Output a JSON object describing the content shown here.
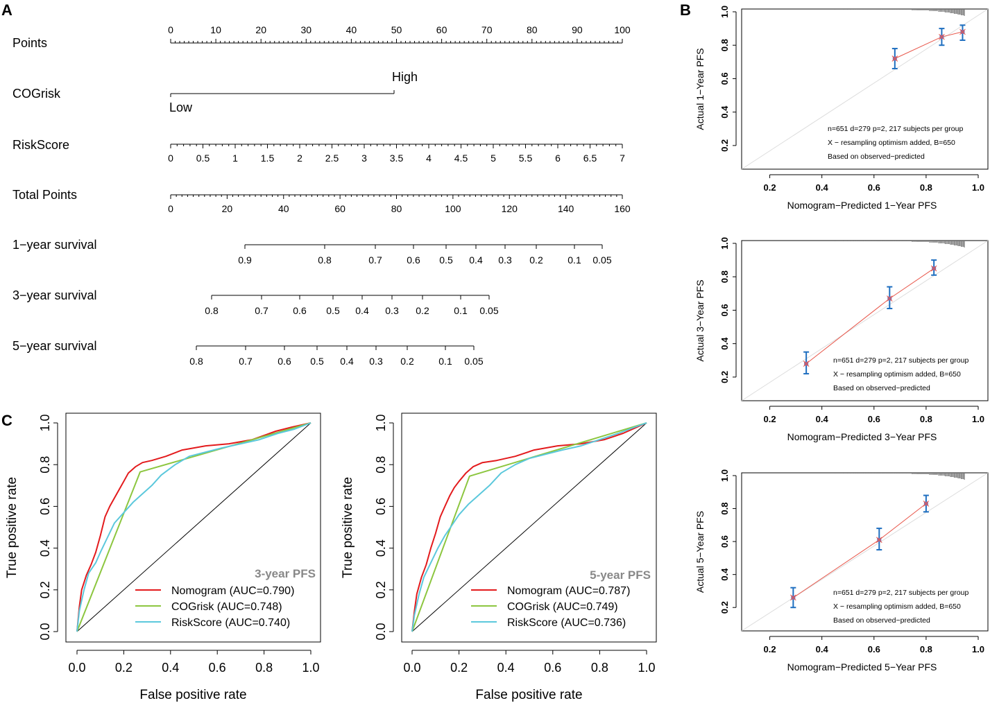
{
  "panels": {
    "a": "A",
    "b": "B",
    "c": "C"
  },
  "colors": {
    "nomogram": "#e31a1c",
    "cogrisk": "#8cc63f",
    "riskscore": "#5bc8dc",
    "calib_line": "#e8564a",
    "calib_err": "#1f6fc0",
    "calib_point": "#8a6da6",
    "ideal": "#dcdcdc"
  },
  "nomogram": {
    "rows": [
      {
        "label": "Points",
        "type": "points",
        "ticks": [
          "0",
          "10",
          "20",
          "30",
          "40",
          "50",
          "60",
          "70",
          "80",
          "90",
          "100"
        ]
      },
      {
        "label": "COGrisk",
        "type": "categorical",
        "low": "Low",
        "high": "High"
      },
      {
        "label": "RiskScore",
        "type": "risk",
        "ticks": [
          "0",
          "0.5",
          "1",
          "1.5",
          "2",
          "2.5",
          "3",
          "3.5",
          "4",
          "4.5",
          "5",
          "5.5",
          "6",
          "6.5",
          "7"
        ]
      },
      {
        "label": "Total Points",
        "type": "total",
        "ticks": [
          "0",
          "20",
          "40",
          "60",
          "80",
          "100",
          "120",
          "140",
          "160"
        ]
      },
      {
        "label": "1−year survival",
        "type": "surv1",
        "ticks": [
          "0.9",
          "0.8",
          "0.7",
          "0.6",
          "0.5",
          "0.4",
          "0.3",
          "0.2",
          "0.1",
          "0.05"
        ]
      },
      {
        "label": "3−year survival",
        "type": "surv3",
        "ticks": [
          "0.8",
          "0.7",
          "0.6",
          "0.5",
          "0.4",
          "0.3",
          "0.2",
          "0.1",
          "0.05"
        ]
      },
      {
        "label": "5−year survival",
        "type": "surv5",
        "ticks": [
          "0.8",
          "0.7",
          "0.6",
          "0.5",
          "0.4",
          "0.3",
          "0.2",
          "0.1",
          "0.05"
        ]
      }
    ]
  },
  "chart_data": [
    {
      "type": "line",
      "title": "3-year PFS",
      "xlabel": "False positive rate",
      "ylabel": "True positive rate",
      "xlim": [
        0,
        1
      ],
      "ylim": [
        0,
        1
      ],
      "ticks": [
        "0.0",
        "0.2",
        "0.4",
        "0.6",
        "0.8",
        "1.0"
      ],
      "series": [
        {
          "name": "Nomogram (AUC=0.790)",
          "color": "#e31a1c",
          "x": [
            0,
            0.01,
            0.02,
            0.04,
            0.06,
            0.08,
            0.1,
            0.12,
            0.14,
            0.16,
            0.18,
            0.2,
            0.22,
            0.25,
            0.28,
            0.32,
            0.38,
            0.45,
            0.55,
            0.65,
            0.75,
            0.85,
            0.92,
            1.0
          ],
          "y": [
            0,
            0.12,
            0.2,
            0.27,
            0.32,
            0.38,
            0.46,
            0.55,
            0.6,
            0.64,
            0.68,
            0.72,
            0.76,
            0.79,
            0.81,
            0.82,
            0.84,
            0.87,
            0.89,
            0.9,
            0.92,
            0.96,
            0.98,
            1.0
          ]
        },
        {
          "name": "COGrisk (AUC=0.748)",
          "color": "#8cc63f",
          "x": [
            0,
            0.27,
            1.0
          ],
          "y": [
            0,
            0.765,
            1.0
          ]
        },
        {
          "name": "RiskScore (AUC=0.740)",
          "color": "#5bc8dc",
          "x": [
            0,
            0.01,
            0.03,
            0.05,
            0.08,
            0.1,
            0.13,
            0.16,
            0.2,
            0.24,
            0.28,
            0.32,
            0.36,
            0.42,
            0.48,
            0.55,
            0.62,
            0.7,
            0.78,
            0.86,
            0.93,
            1.0
          ],
          "y": [
            0,
            0.1,
            0.2,
            0.28,
            0.33,
            0.38,
            0.45,
            0.52,
            0.57,
            0.62,
            0.66,
            0.7,
            0.75,
            0.8,
            0.84,
            0.86,
            0.88,
            0.9,
            0.92,
            0.95,
            0.97,
            1.0
          ]
        }
      ]
    },
    {
      "type": "line",
      "title": "5-year PFS",
      "xlabel": "False positive rate",
      "ylabel": "True positive rate",
      "xlim": [
        0,
        1
      ],
      "ylim": [
        0,
        1
      ],
      "ticks": [
        "0.0",
        "0.2",
        "0.4",
        "0.6",
        "0.8",
        "1.0"
      ],
      "series": [
        {
          "name": "Nomogram (AUC=0.787)",
          "color": "#e31a1c",
          "x": [
            0,
            0.01,
            0.02,
            0.04,
            0.06,
            0.08,
            0.1,
            0.12,
            0.14,
            0.16,
            0.18,
            0.2,
            0.23,
            0.26,
            0.3,
            0.36,
            0.44,
            0.52,
            0.62,
            0.72,
            0.82,
            0.9,
            0.96,
            1.0
          ],
          "y": [
            0,
            0.1,
            0.18,
            0.26,
            0.32,
            0.4,
            0.47,
            0.55,
            0.6,
            0.65,
            0.69,
            0.72,
            0.76,
            0.79,
            0.81,
            0.82,
            0.84,
            0.87,
            0.89,
            0.9,
            0.92,
            0.95,
            0.98,
            1.0
          ]
        },
        {
          "name": "COGrisk (AUC=0.749)",
          "color": "#8cc63f",
          "x": [
            0,
            0.245,
            1.0
          ],
          "y": [
            0,
            0.745,
            1.0
          ]
        },
        {
          "name": "RiskScore (AUC=0.736)",
          "color": "#5bc8dc",
          "x": [
            0,
            0.01,
            0.03,
            0.05,
            0.08,
            0.11,
            0.14,
            0.17,
            0.2,
            0.24,
            0.28,
            0.33,
            0.38,
            0.44,
            0.5,
            0.57,
            0.64,
            0.72,
            0.8,
            0.88,
            0.95,
            1.0
          ],
          "y": [
            0,
            0.08,
            0.18,
            0.26,
            0.33,
            0.4,
            0.46,
            0.51,
            0.56,
            0.61,
            0.65,
            0.7,
            0.76,
            0.8,
            0.83,
            0.85,
            0.87,
            0.89,
            0.92,
            0.95,
            0.98,
            1.0
          ]
        }
      ]
    },
    {
      "type": "scatter",
      "xlabel": "Nomogram−Predicted 1−Year PFS",
      "ylabel": "Actual 1−Year PFS",
      "xlim": [
        0.1,
        1.0
      ],
      "ylim": [
        0.1,
        1.0
      ],
      "xticks": [
        "0.2",
        "0.4",
        "0.6",
        "0.8",
        "1.0"
      ],
      "yticks": [
        "0.2",
        "0.4",
        "0.6",
        "0.8",
        "1.0"
      ],
      "points": [
        {
          "x": 0.68,
          "y": 0.72,
          "lo": 0.66,
          "hi": 0.78
        },
        {
          "x": 0.86,
          "y": 0.85,
          "lo": 0.8,
          "hi": 0.9
        },
        {
          "x": 0.94,
          "y": 0.88,
          "lo": 0.83,
          "hi": 0.92
        }
      ],
      "notes": [
        "n=651 d=279 p=2, 217 subjects per group",
        "X − resampling optimism added, B=650",
        "Based on observed−predicted"
      ]
    },
    {
      "type": "scatter",
      "xlabel": "Nomogram−Predicted 3−Year PFS",
      "ylabel": "Actual 3−Year PFS",
      "xlim": [
        0.1,
        1.0
      ],
      "ylim": [
        0.1,
        1.0
      ],
      "xticks": [
        "0.2",
        "0.4",
        "0.6",
        "0.8",
        "1.0"
      ],
      "yticks": [
        "0.2",
        "0.4",
        "0.6",
        "0.8",
        "1.0"
      ],
      "points": [
        {
          "x": 0.34,
          "y": 0.28,
          "lo": 0.22,
          "hi": 0.35
        },
        {
          "x": 0.66,
          "y": 0.67,
          "lo": 0.61,
          "hi": 0.74
        },
        {
          "x": 0.83,
          "y": 0.85,
          "lo": 0.81,
          "hi": 0.9
        }
      ],
      "notes": [
        "n=651 d=279 p=2, 217 subjects per group",
        "X − resampling optimism added, B=650",
        "Based on observed−predicted"
      ]
    },
    {
      "type": "scatter",
      "xlabel": "Nomogram−Predicted 5−Year PFS",
      "ylabel": "Actual 5−Year PFS",
      "xlim": [
        0.1,
        1.0
      ],
      "ylim": [
        0.1,
        1.0
      ],
      "xticks": [
        "0.2",
        "0.4",
        "0.6",
        "0.8",
        "1.0"
      ],
      "yticks": [
        "0.2",
        "0.4",
        "0.6",
        "0.8",
        "1.0"
      ],
      "points": [
        {
          "x": 0.29,
          "y": 0.26,
          "lo": 0.2,
          "hi": 0.32
        },
        {
          "x": 0.62,
          "y": 0.61,
          "lo": 0.55,
          "hi": 0.68
        },
        {
          "x": 0.8,
          "y": 0.83,
          "lo": 0.78,
          "hi": 0.88
        }
      ],
      "notes": [
        "n=651 d=279 p=2, 217 subjects per group",
        "X − resampling optimism added, B=650",
        "Based on observed−predicted"
      ]
    }
  ]
}
